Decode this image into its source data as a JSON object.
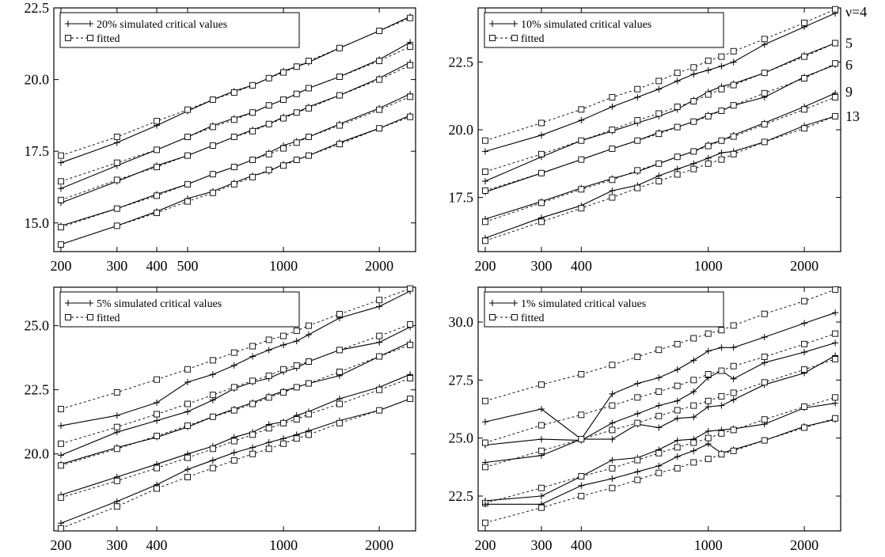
{
  "chart_data": [
    {
      "type": "line",
      "xscale": "log",
      "xlim": [
        190,
        2600
      ],
      "ylim": [
        14,
        22.5
      ],
      "xticks": [
        200,
        300,
        400,
        500,
        1000,
        2000
      ],
      "xtick_labels": [
        "200",
        "300",
        "400",
        "500",
        "1000",
        "2000"
      ],
      "yticks": [
        15,
        17.5,
        20,
        22.5
      ],
      "ytick_labels": [
        "15.0",
        "17.5",
        "20.0",
        "22.5"
      ],
      "legend": {
        "position": "top-left",
        "entries": [
          "20% simulated critical values",
          "fitted"
        ]
      },
      "x": [
        200,
        300,
        400,
        500,
        600,
        700,
        800,
        900,
        1000,
        1100,
        1200,
        1500,
        2000,
        2500
      ],
      "series": [
        {
          "group": "simulated",
          "values": [
            17.1,
            17.8,
            18.4,
            18.9,
            19.3,
            19.6,
            19.8,
            20.05,
            20.3,
            20.45,
            20.6,
            21.1,
            21.7,
            22.2
          ]
        },
        {
          "group": "fitted",
          "values": [
            17.35,
            18.0,
            18.55,
            18.95,
            19.3,
            19.55,
            19.8,
            20.05,
            20.25,
            20.45,
            20.65,
            21.1,
            21.7,
            22.15
          ]
        },
        {
          "group": "simulated",
          "values": [
            16.2,
            17.0,
            17.55,
            18.0,
            18.4,
            18.65,
            18.85,
            19.1,
            19.3,
            19.5,
            19.7,
            20.1,
            20.7,
            21.3
          ]
        },
        {
          "group": "fitted",
          "values": [
            16.45,
            17.1,
            17.55,
            18.0,
            18.35,
            18.6,
            18.85,
            19.1,
            19.3,
            19.5,
            19.7,
            20.1,
            20.65,
            21.15
          ]
        },
        {
          "group": "simulated",
          "values": [
            15.7,
            16.45,
            17.0,
            17.35,
            17.7,
            18.0,
            18.25,
            18.45,
            18.7,
            18.85,
            19.05,
            19.45,
            20.05,
            20.6
          ]
        },
        {
          "group": "fitted",
          "values": [
            15.8,
            16.5,
            16.95,
            17.35,
            17.7,
            18.0,
            18.2,
            18.45,
            18.65,
            18.85,
            19.0,
            19.45,
            20.0,
            20.5
          ]
        },
        {
          "group": "simulated",
          "values": [
            14.9,
            15.5,
            16.0,
            16.35,
            16.7,
            16.95,
            17.2,
            17.45,
            17.7,
            17.85,
            18.0,
            18.45,
            19.0,
            19.5
          ]
        },
        {
          "group": "fitted",
          "values": [
            14.85,
            15.5,
            15.95,
            16.35,
            16.7,
            16.95,
            17.2,
            17.4,
            17.6,
            17.8,
            18.0,
            18.4,
            18.95,
            19.4
          ]
        },
        {
          "group": "simulated",
          "values": [
            14.25,
            14.9,
            15.4,
            15.85,
            16.1,
            16.4,
            16.65,
            16.8,
            17.05,
            17.2,
            17.35,
            17.8,
            18.3,
            18.75
          ]
        },
        {
          "group": "fitted",
          "values": [
            14.25,
            14.9,
            15.35,
            15.75,
            16.05,
            16.35,
            16.6,
            16.85,
            17.0,
            17.2,
            17.35,
            17.75,
            18.3,
            18.7
          ]
        }
      ]
    },
    {
      "type": "line",
      "xscale": "log",
      "xlim": [
        190,
        2600
      ],
      "ylim": [
        15.5,
        24.5
      ],
      "xticks": [
        200,
        300,
        400,
        1000,
        2000
      ],
      "xtick_labels": [
        "200",
        "300",
        "400",
        "1000",
        "2000"
      ],
      "yticks": [
        17.5,
        20,
        22.5
      ],
      "ytick_labels": [
        "17.5",
        "20.0",
        "22.5"
      ],
      "legend": {
        "position": "top-left",
        "entries": [
          "10% simulated critical values",
          "fitted"
        ]
      },
      "right_labels": [
        "ν=4",
        "5",
        "6",
        "9",
        "13"
      ],
      "x": [
        200,
        300,
        400,
        500,
        600,
        700,
        800,
        900,
        1000,
        1100,
        1200,
        1500,
        2000,
        2500
      ],
      "series": [
        {
          "group": "simulated",
          "values": [
            19.2,
            19.8,
            20.35,
            20.85,
            21.2,
            21.5,
            21.8,
            22.05,
            22.2,
            22.35,
            22.5,
            23.15,
            23.8,
            24.3
          ]
        },
        {
          "group": "fitted",
          "values": [
            19.6,
            20.25,
            20.75,
            21.2,
            21.5,
            21.8,
            22.1,
            22.3,
            22.55,
            22.7,
            22.9,
            23.35,
            23.95,
            24.45
          ]
        },
        {
          "group": "simulated",
          "values": [
            18.1,
            19.0,
            19.6,
            19.95,
            20.25,
            20.5,
            20.75,
            21.1,
            21.4,
            21.6,
            21.7,
            22.1,
            22.75,
            23.2
          ]
        },
        {
          "group": "fitted",
          "values": [
            18.45,
            19.1,
            19.6,
            20.0,
            20.35,
            20.6,
            20.85,
            21.05,
            21.3,
            21.5,
            21.65,
            22.1,
            22.7,
            23.2
          ]
        },
        {
          "group": "simulated",
          "values": [
            17.7,
            18.4,
            18.9,
            19.3,
            19.6,
            19.9,
            20.1,
            20.3,
            20.55,
            20.7,
            20.9,
            21.2,
            21.95,
            22.4
          ]
        },
        {
          "group": "fitted",
          "values": [
            17.75,
            18.4,
            18.9,
            19.3,
            19.6,
            19.85,
            20.1,
            20.3,
            20.5,
            20.7,
            20.9,
            21.35,
            21.9,
            22.45
          ]
        },
        {
          "group": "simulated",
          "values": [
            16.7,
            17.35,
            17.85,
            18.2,
            18.45,
            18.75,
            19.0,
            19.2,
            19.45,
            19.6,
            19.8,
            20.25,
            20.85,
            21.35
          ]
        },
        {
          "group": "fitted",
          "values": [
            16.6,
            17.3,
            17.8,
            18.15,
            18.5,
            18.75,
            19.0,
            19.2,
            19.4,
            19.6,
            19.75,
            20.2,
            20.75,
            21.2
          ]
        },
        {
          "group": "simulated",
          "values": [
            16.0,
            16.75,
            17.2,
            17.75,
            17.95,
            18.3,
            18.55,
            18.75,
            18.95,
            19.15,
            19.2,
            19.55,
            20.15,
            20.5
          ]
        },
        {
          "group": "fitted",
          "values": [
            15.9,
            16.6,
            17.1,
            17.5,
            17.85,
            18.1,
            18.35,
            18.55,
            18.75,
            18.9,
            19.1,
            19.55,
            20.05,
            20.5
          ]
        }
      ]
    },
    {
      "type": "line",
      "xscale": "log",
      "xlim": [
        190,
        2600
      ],
      "ylim": [
        17.0,
        26.5
      ],
      "xticks": [
        200,
        300,
        400,
        1000,
        2000
      ],
      "xtick_labels": [
        "200",
        "300",
        "400",
        "1000",
        "2000"
      ],
      "yticks": [
        20,
        22.5,
        25
      ],
      "ytick_labels": [
        "20.0",
        "22.5",
        "25.0"
      ],
      "legend": {
        "position": "top-left",
        "entries": [
          "5% simulated critical values",
          "fitted"
        ]
      },
      "x": [
        200,
        300,
        400,
        500,
        600,
        700,
        800,
        900,
        1000,
        1100,
        1200,
        1500,
        2000,
        2500
      ],
      "series": [
        {
          "group": "simulated",
          "values": [
            21.1,
            21.5,
            22.0,
            22.8,
            23.1,
            23.45,
            23.8,
            24.05,
            24.25,
            24.4,
            24.65,
            25.3,
            25.75,
            26.35
          ]
        },
        {
          "group": "fitted",
          "values": [
            21.75,
            22.4,
            22.9,
            23.3,
            23.65,
            23.95,
            24.2,
            24.45,
            24.6,
            24.8,
            25.0,
            25.45,
            26.0,
            26.45
          ]
        },
        {
          "group": "simulated",
          "values": [
            19.95,
            20.85,
            21.3,
            21.65,
            22.1,
            22.55,
            22.8,
            22.95,
            23.2,
            23.35,
            23.6,
            24.05,
            24.35,
            24.95
          ]
        },
        {
          "group": "fitted",
          "values": [
            20.4,
            21.05,
            21.55,
            21.95,
            22.3,
            22.6,
            22.85,
            23.05,
            23.3,
            23.45,
            23.6,
            24.05,
            24.6,
            25.05
          ]
        },
        {
          "group": "simulated",
          "values": [
            19.6,
            20.25,
            20.65,
            21.05,
            21.45,
            21.75,
            22.0,
            22.25,
            22.45,
            22.6,
            22.75,
            23.05,
            23.8,
            24.35
          ]
        },
        {
          "group": "fitted",
          "values": [
            19.55,
            20.2,
            20.7,
            21.1,
            21.45,
            21.7,
            21.95,
            22.2,
            22.4,
            22.6,
            22.75,
            23.2,
            23.8,
            24.25
          ]
        },
        {
          "group": "simulated",
          "values": [
            18.4,
            19.1,
            19.6,
            20.0,
            20.3,
            20.65,
            20.85,
            21.15,
            21.25,
            21.5,
            21.65,
            22.15,
            22.6,
            23.1
          ]
        },
        {
          "group": "fitted",
          "values": [
            18.3,
            18.95,
            19.45,
            19.85,
            20.2,
            20.5,
            20.75,
            21.0,
            21.2,
            21.35,
            21.55,
            21.95,
            22.5,
            22.95
          ]
        },
        {
          "group": "simulated",
          "values": [
            17.3,
            18.15,
            18.8,
            19.4,
            19.75,
            20.05,
            20.25,
            20.45,
            20.6,
            20.75,
            20.9,
            21.3,
            21.7,
            22.15
          ]
        },
        {
          "group": "fitted",
          "values": [
            17.1,
            17.95,
            18.65,
            19.1,
            19.45,
            19.75,
            20.0,
            20.2,
            20.4,
            20.6,
            20.75,
            21.2,
            21.7,
            22.15
          ]
        }
      ]
    },
    {
      "type": "line",
      "xscale": "log",
      "xlim": [
        190,
        2600
      ],
      "ylim": [
        21.0,
        31.5
      ],
      "xticks": [
        200,
        300,
        400,
        1000,
        2000
      ],
      "xtick_labels": [
        "200",
        "300",
        "400",
        "1000",
        "2000"
      ],
      "yticks": [
        22.5,
        25,
        27.5,
        30
      ],
      "ytick_labels": [
        "22.5",
        "25.0",
        "27.5",
        "30.0"
      ],
      "legend": {
        "position": "top-left",
        "entries": [
          "1% simulated critical values",
          "fitted"
        ]
      },
      "x": [
        200,
        300,
        400,
        500,
        600,
        700,
        800,
        900,
        1000,
        1100,
        1200,
        1500,
        2000,
        2500
      ],
      "series": [
        {
          "group": "simulated",
          "values": [
            25.7,
            26.25,
            24.95,
            26.9,
            27.35,
            27.6,
            27.95,
            28.35,
            28.75,
            28.9,
            28.9,
            29.35,
            29.95,
            30.4
          ]
        },
        {
          "group": "fitted",
          "values": [
            26.6,
            27.3,
            27.75,
            28.15,
            28.5,
            28.8,
            29.05,
            29.3,
            29.5,
            29.65,
            29.85,
            30.35,
            30.9,
            31.4
          ]
        },
        {
          "group": "simulated",
          "values": [
            24.7,
            24.95,
            24.9,
            25.65,
            26.05,
            26.4,
            26.6,
            27.0,
            27.6,
            27.9,
            27.55,
            28.25,
            28.7,
            29.1
          ]
        },
        {
          "group": "fitted",
          "values": [
            24.8,
            25.55,
            26.0,
            26.4,
            26.75,
            27.0,
            27.25,
            27.5,
            27.75,
            27.9,
            28.1,
            28.5,
            29.05,
            29.5
          ]
        },
        {
          "group": "simulated",
          "values": [
            23.95,
            24.25,
            24.95,
            24.95,
            25.6,
            25.45,
            25.85,
            25.9,
            26.35,
            26.4,
            26.65,
            27.3,
            27.8,
            28.55
          ]
        },
        {
          "group": "fitted",
          "values": [
            23.75,
            24.45,
            24.95,
            25.35,
            25.65,
            25.95,
            26.2,
            26.4,
            26.6,
            26.8,
            26.95,
            27.4,
            27.95,
            28.4
          ]
        },
        {
          "group": "simulated",
          "values": [
            22.3,
            22.5,
            23.35,
            24.05,
            24.15,
            24.5,
            24.9,
            24.95,
            25.3,
            25.35,
            25.4,
            25.6,
            26.3,
            26.5
          ]
        },
        {
          "group": "fitted",
          "values": [
            22.2,
            22.85,
            23.35,
            23.7,
            24.05,
            24.35,
            24.6,
            24.8,
            25.0,
            25.2,
            25.35,
            25.8,
            26.35,
            26.75
          ]
        },
        {
          "group": "simulated",
          "values": [
            22.15,
            22.15,
            22.95,
            23.25,
            23.55,
            23.8,
            24.2,
            24.45,
            24.75,
            24.35,
            24.5,
            24.9,
            25.5,
            25.8
          ]
        },
        {
          "group": "fitted",
          "values": [
            21.35,
            22.0,
            22.5,
            22.85,
            23.2,
            23.5,
            23.7,
            23.95,
            24.1,
            24.3,
            24.45,
            24.9,
            25.45,
            25.85
          ]
        }
      ]
    }
  ]
}
